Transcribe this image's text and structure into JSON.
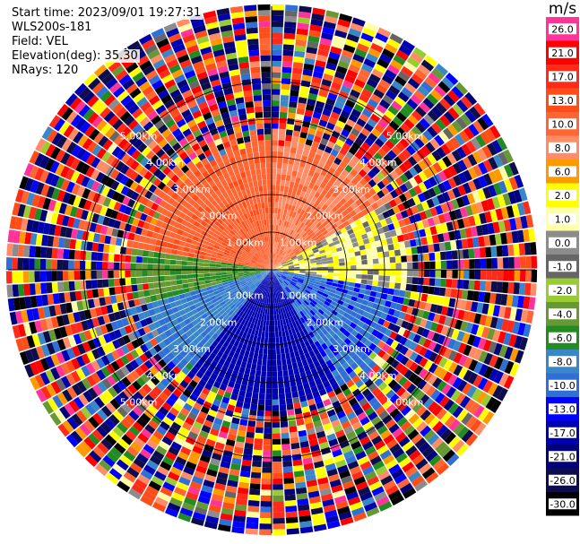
{
  "header": {
    "start_time": "Start time: 2023/09/01 19:27:31",
    "site": "WLS200s-181",
    "field": "Field: VEL",
    "elevation": "Elevation(deg): 35.30",
    "nrays": "NRays: 120"
  },
  "colorbar": {
    "unit": "m/s",
    "levels": [
      {
        "label": "26.0",
        "color": "#ff3399"
      },
      {
        "label": "21.0",
        "color": "#ff0000"
      },
      {
        "label": "17.0",
        "color": "#ff2a1a"
      },
      {
        "label": "13.0",
        "color": "#ff4d1a"
      },
      {
        "label": "10.0",
        "color": "#ff6633"
      },
      {
        "label": "8.0",
        "color": "#ff8c66"
      },
      {
        "label": "6.0",
        "color": "#ff9900"
      },
      {
        "label": "2.0",
        "color": "#ffff00"
      },
      {
        "label": "1.0",
        "color": "#ffffaa"
      },
      {
        "label": "0.0",
        "color": "#8c8c8c"
      },
      {
        "label": "-1.0",
        "color": "#666666"
      },
      {
        "label": "-2.0",
        "color": "#99cc33"
      },
      {
        "label": "-4.0",
        "color": "#669933"
      },
      {
        "label": "-6.0",
        "color": "#228b22"
      },
      {
        "label": "-8.0",
        "color": "#3a87c8"
      },
      {
        "label": "-10.0",
        "color": "#2f6fd6"
      },
      {
        "label": "-13.0",
        "color": "#0000ff"
      },
      {
        "label": "-17.0",
        "color": "#0000b3"
      },
      {
        "label": "-21.0",
        "color": "#00007a"
      },
      {
        "label": "-26.0",
        "color": "#0d0d4d"
      },
      {
        "label": "-30.0",
        "color": "#000000"
      }
    ]
  },
  "chart_data": {
    "type": "heatmap",
    "projection": "polar PPI (plan position indicator)",
    "rays": 120,
    "range_rings_km": [
      1,
      2,
      3,
      4,
      5
    ],
    "range_ring_labels": [
      "1.00km",
      "2.00km",
      "3.00km",
      "4.00km",
      "5.00km"
    ],
    "azimuth_sectors": [
      {
        "azimuth_deg": [
          280,
          360
        ],
        "velocity_ms": 12,
        "note": "north-west / north"
      },
      {
        "azimuth_deg": [
          0,
          60
        ],
        "velocity_ms": 10,
        "note": "north-east"
      },
      {
        "azimuth_deg": [
          60,
          100
        ],
        "velocity_ms": 1.5,
        "note": "east"
      },
      {
        "azimuth_deg": [
          100,
          150
        ],
        "velocity_ms": -9,
        "note": "south-east"
      },
      {
        "azimuth_deg": [
          150,
          220
        ],
        "velocity_ms": -15,
        "note": "south"
      },
      {
        "azimuth_deg": [
          220,
          255
        ],
        "velocity_ms": -8,
        "note": "south-west"
      },
      {
        "azimuth_deg": [
          255,
          280
        ],
        "velocity_ms": -4,
        "note": "west"
      }
    ],
    "valid_range_km": [
      0,
      3.5
    ],
    "noise_beyond_km": 3.5,
    "max_range_km": 7.0
  }
}
